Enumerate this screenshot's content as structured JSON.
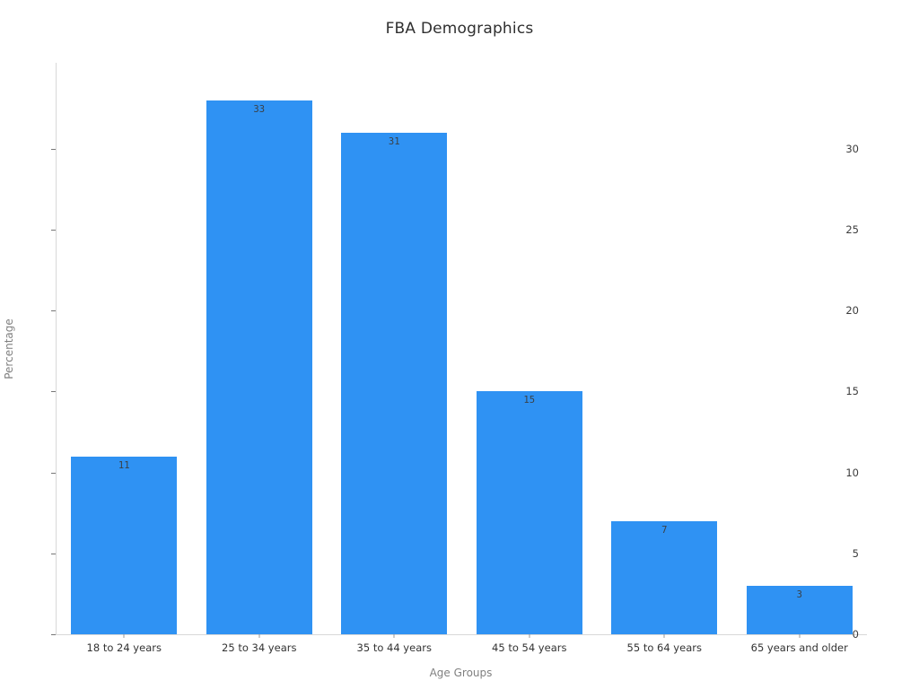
{
  "chart_data": {
    "type": "bar",
    "title": "FBA Demographics",
    "xlabel": "Age Groups",
    "ylabel": "Percentage",
    "categories": [
      "18 to 24 years",
      "25 to 34 years",
      "35 to 44 years",
      "45 to 54 years",
      "55 to 64 years",
      "65 years and older"
    ],
    "values": [
      11,
      33,
      31,
      15,
      7,
      3
    ],
    "bar_value_labels": [
      "11",
      "33",
      "31",
      "15",
      "7",
      "3"
    ],
    "y_ticks": [
      0,
      5,
      10,
      15,
      20,
      25,
      30
    ],
    "ylim": [
      0,
      35.3
    ],
    "grid": false,
    "legend_position": "none",
    "bar_color": "#2F92F3",
    "value_label_color": "#3a4046",
    "axis_line_color": "#d8d8d8",
    "tick_label_color": "#3c3c3c",
    "axis_title_color": "#808080"
  }
}
